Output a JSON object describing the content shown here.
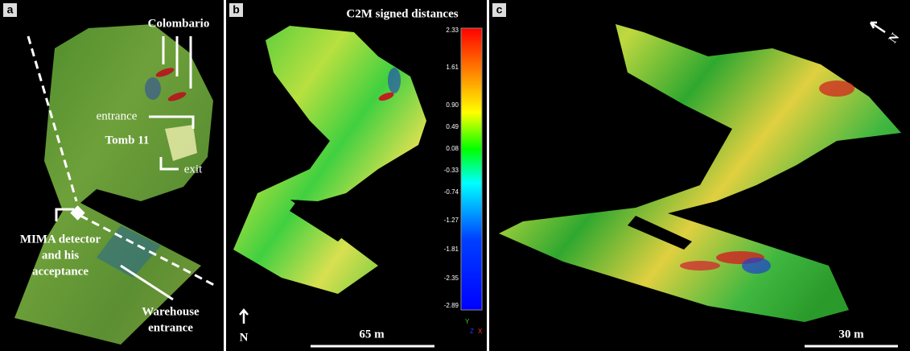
{
  "panels": [
    {
      "label": "a",
      "annotations": {
        "colombario": "Colombario",
        "entrance": "entrance",
        "tomb": "Tomb 11",
        "exit": "exit",
        "mima": [
          "MIMA detector",
          "and his",
          "acceptance"
        ],
        "warehouse": [
          "Warehouse",
          "entrance"
        ]
      }
    },
    {
      "label": "b",
      "colorbar": {
        "title": "C2M signed distances",
        "ticks": [
          "2.33",
          "1.61",
          "0.90",
          "0.49",
          "0.08",
          "-0.33",
          "-0.74",
          "-1.27",
          "-1.81",
          "-2.35",
          "-2.89"
        ],
        "axes": [
          "Y",
          "Z",
          "X"
        ]
      },
      "north": "N",
      "scale": "65 m"
    },
    {
      "label": "c",
      "north": "N",
      "scale": "30 m"
    }
  ]
}
